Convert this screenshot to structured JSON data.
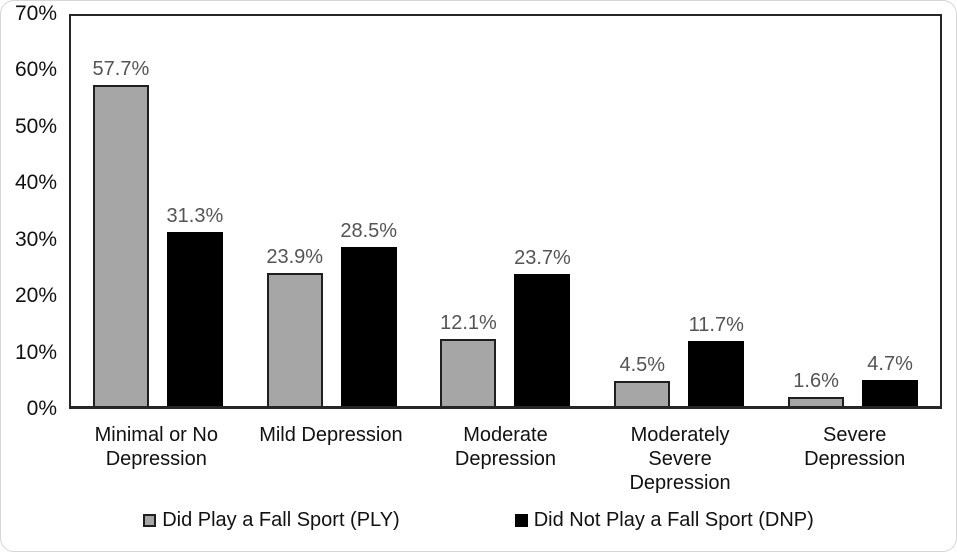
{
  "chart_data": {
    "type": "bar",
    "title": "",
    "xlabel": "",
    "ylabel": "",
    "ylim": [
      0,
      70
    ],
    "grid": false,
    "categories": [
      "Minimal or No Depression",
      "Mild Depression",
      "Moderate Depression",
      "Moderately Severe Depression",
      "Severe Depression"
    ],
    "category_lines": [
      [
        "Minimal or No",
        "Depression"
      ],
      [
        "Mild Depression"
      ],
      [
        "Moderate",
        "Depression"
      ],
      [
        "Moderately",
        "Severe",
        "Depression"
      ],
      [
        "Severe",
        "Depression"
      ]
    ],
    "series": [
      {
        "key": "ply",
        "name": "Did Play a Fall Sport (PLY)",
        "color": "#a6a6a6",
        "border_color": "#1f1f1f",
        "values": [
          57.7,
          23.9,
          12.1,
          4.5,
          1.6
        ],
        "value_labels": [
          "57.7%",
          "23.9%",
          "12.1%",
          "4.5%",
          "1.6%"
        ]
      },
      {
        "key": "dnp",
        "name": "Did Not Play a Fall Sport (DNP)",
        "color": "#000000",
        "border_color": "#000000",
        "values": [
          31.3,
          28.5,
          23.7,
          11.7,
          4.7
        ],
        "value_labels": [
          "31.3%",
          "28.5%",
          "23.7%",
          "11.7%",
          "4.7%"
        ]
      }
    ],
    "y_axis": {
      "ticks": [
        {
          "label": "70%",
          "value": 70
        },
        {
          "label": "60%",
          "value": 60
        },
        {
          "label": "50%",
          "value": 50
        },
        {
          "label": "40%",
          "value": 40
        },
        {
          "label": "30%",
          "value": 30
        },
        {
          "label": "20%",
          "value": 20
        },
        {
          "label": "10%",
          "value": 10
        },
        {
          "label": "0%",
          "value": 0
        }
      ]
    },
    "legend": {
      "position": "bottom"
    },
    "colors": {
      "data_label": "#545454",
      "axis_text": "#111111",
      "plot_border": "#262626",
      "card_border": "#d6d6d6",
      "background": "#ffffff"
    }
  }
}
